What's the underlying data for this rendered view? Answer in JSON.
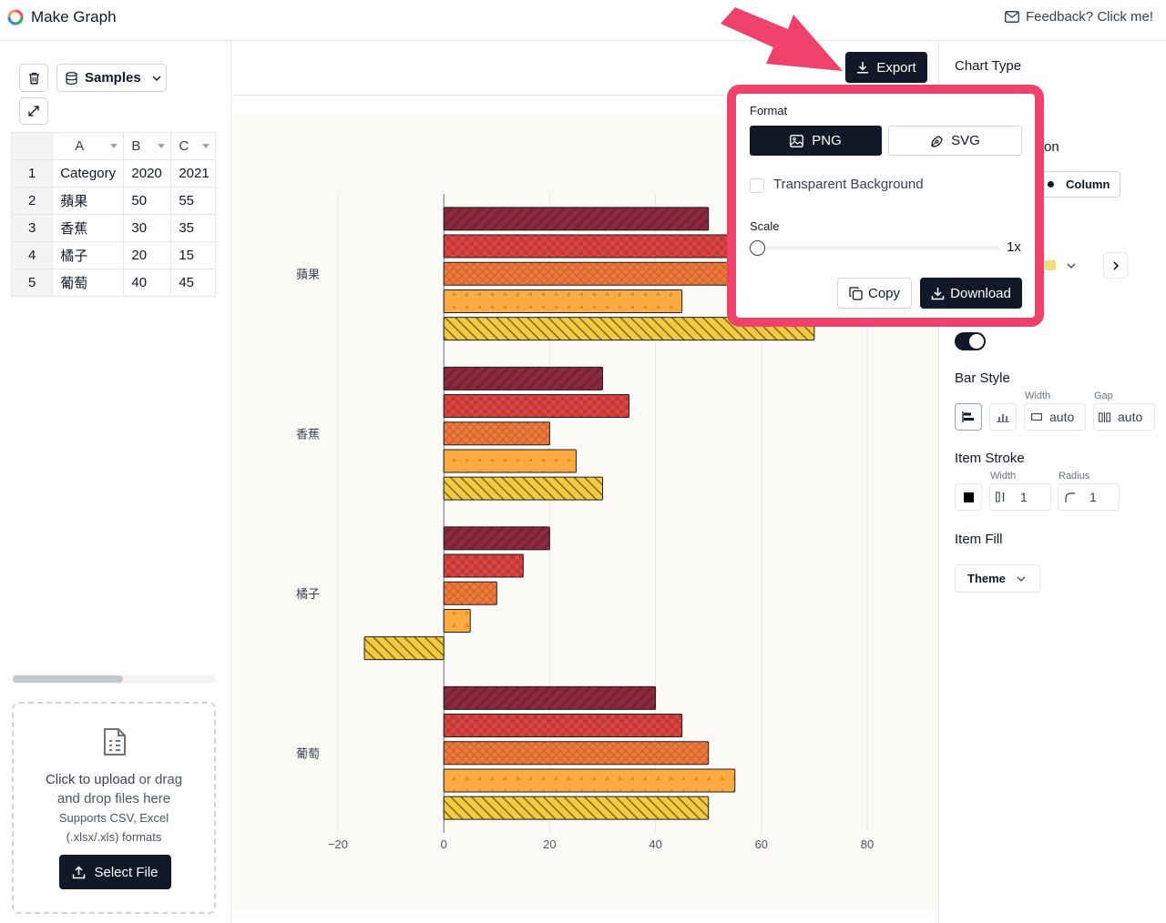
{
  "app": {
    "title": "Make Graph",
    "feedback": "Feedback? Click me!"
  },
  "left": {
    "samples_label": "Samples",
    "grid": {
      "columns": [
        "A",
        "B",
        "C"
      ],
      "rows": [
        [
          "1",
          "Category",
          "2020",
          "2021"
        ],
        [
          "2",
          "蘋果",
          "50",
          "55"
        ],
        [
          "3",
          "香蕉",
          "30",
          "35"
        ],
        [
          "4",
          "橘子",
          "20",
          "15"
        ],
        [
          "5",
          "葡萄",
          "40",
          "45"
        ]
      ]
    },
    "upload": {
      "line1_bold": "Click to upload",
      "line1_rest": " or drag",
      "line2": "and drop files here",
      "sub1": "Supports CSV, Excel",
      "sub2": "(.xlsx/.xls) formats",
      "button": "Select File"
    }
  },
  "toolbar": {
    "export_label": "Export"
  },
  "popover": {
    "format_label": "Format",
    "png_label": "PNG",
    "svg_label": "SVG",
    "transparent_label": "Transparent Background",
    "transparent_checked": false,
    "scale_label": "Scale",
    "scale_value": "1x",
    "scale_fraction": 0,
    "copy_label": "Copy",
    "download_label": "Download"
  },
  "right": {
    "chart_type_label": "Chart Type",
    "orientation_partial": "on",
    "column_label": "Column",
    "bar_style_label": "Bar Style",
    "width_label": "Width",
    "gap_label": "Gap",
    "width_value": "auto",
    "gap_value": "auto",
    "item_stroke_label": "Item Stroke",
    "stroke_width_label": "Width",
    "stroke_radius_label": "Radius",
    "stroke_width_value": "1",
    "stroke_radius_value": "1",
    "item_fill_label": "Item Fill",
    "theme_label": "Theme",
    "toggle_on": true
  },
  "colors": {
    "accent": "#111827",
    "highlight": "#f0416c",
    "series": [
      "#8b2a3e",
      "#d9463f",
      "#ec7a3c",
      "#fbab42",
      "#f2cb45"
    ]
  },
  "chart_data": {
    "type": "bar",
    "orientation": "horizontal",
    "categories": [
      "蘋果",
      "香蕉",
      "橘子",
      "葡萄"
    ],
    "series": [
      {
        "values": [
          50,
          30,
          20,
          40
        ]
      },
      {
        "values": [
          55,
          35,
          15,
          45
        ]
      },
      {
        "values": [
          60,
          20,
          10,
          50
        ]
      },
      {
        "values": [
          45,
          25,
          5,
          55
        ]
      },
      {
        "values": [
          70,
          30,
          -15,
          50
        ]
      }
    ],
    "xlim": [
      -20,
      80
    ],
    "xticks": [
      "−20",
      "0",
      "20",
      "40",
      "60",
      "80"
    ],
    "xtick_values": [
      -20,
      0,
      20,
      40,
      60,
      80
    ],
    "grid": true
  }
}
